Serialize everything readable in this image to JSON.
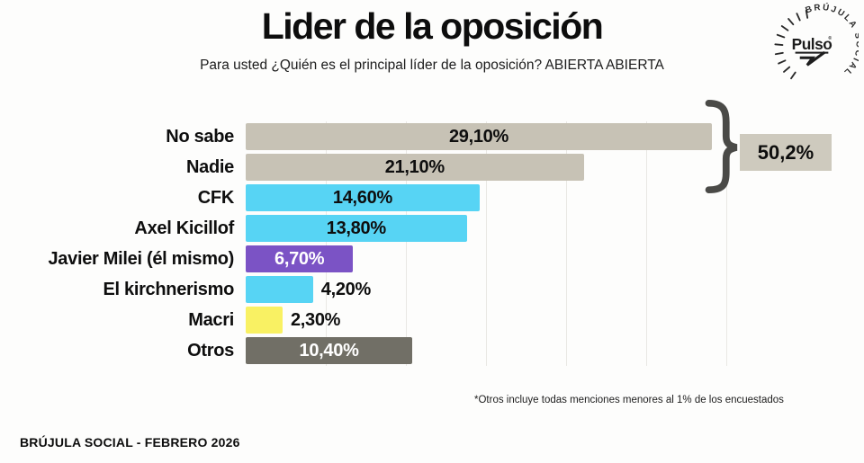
{
  "title": "Lider de la oposición",
  "subtitle": "Para usted ¿Quién es el principal líder de la oposición? ABIERTA ABIERTA",
  "logo": {
    "brand": "Pulso",
    "reg": "®",
    "ring_text": "BRÚJULA SOCIAL"
  },
  "chart_data": {
    "type": "bar",
    "orientation": "horizontal",
    "title": "Lider de la oposición",
    "categories": [
      "No sabe",
      "Nadie",
      "CFK",
      "Axel Kicillof",
      "Javier Milei (él mismo)",
      "El kirchnerismo",
      "Macri",
      "Otros"
    ],
    "values": [
      29.1,
      21.1,
      14.6,
      13.8,
      6.7,
      4.2,
      2.3,
      10.4
    ],
    "value_labels": [
      "29,10%",
      "21,10%",
      "14,60%",
      "13,80%",
      "6,70%",
      "4,20%",
      "2,30%",
      "10,40%"
    ],
    "bar_colors": [
      "#c7c2b5",
      "#c7c2b5",
      "#57d4f4",
      "#57d4f4",
      "#7b53c5",
      "#57d4f4",
      "#f9f163",
      "#716f66"
    ],
    "value_label_colors": [
      "#0e0e0e",
      "#0e0e0e",
      "#0e0e0e",
      "#0e0e0e",
      "#ffffff",
      "#0e0e0e",
      "#0e0e0e",
      "#ffffff"
    ],
    "value_label_inside": [
      true,
      true,
      true,
      true,
      true,
      false,
      false,
      true
    ],
    "xlim": [
      0,
      30
    ],
    "gridline_step": 5,
    "grid": true,
    "legend": false,
    "accent_colors": {
      "tan": "#c7c2b5",
      "cyan": "#57d4f4",
      "purple": "#7b53c5",
      "yellow": "#f9f163",
      "olive": "#716f66",
      "brace": "#4a4a47",
      "box_bg": "#cecabe"
    }
  },
  "annotation": {
    "group_label": "50,2%"
  },
  "footnote": "*Otros incluye todas menciones menores al 1% de los encuestados",
  "credit": "BRÚJULA SOCIAL - FEBRERO 2026"
}
